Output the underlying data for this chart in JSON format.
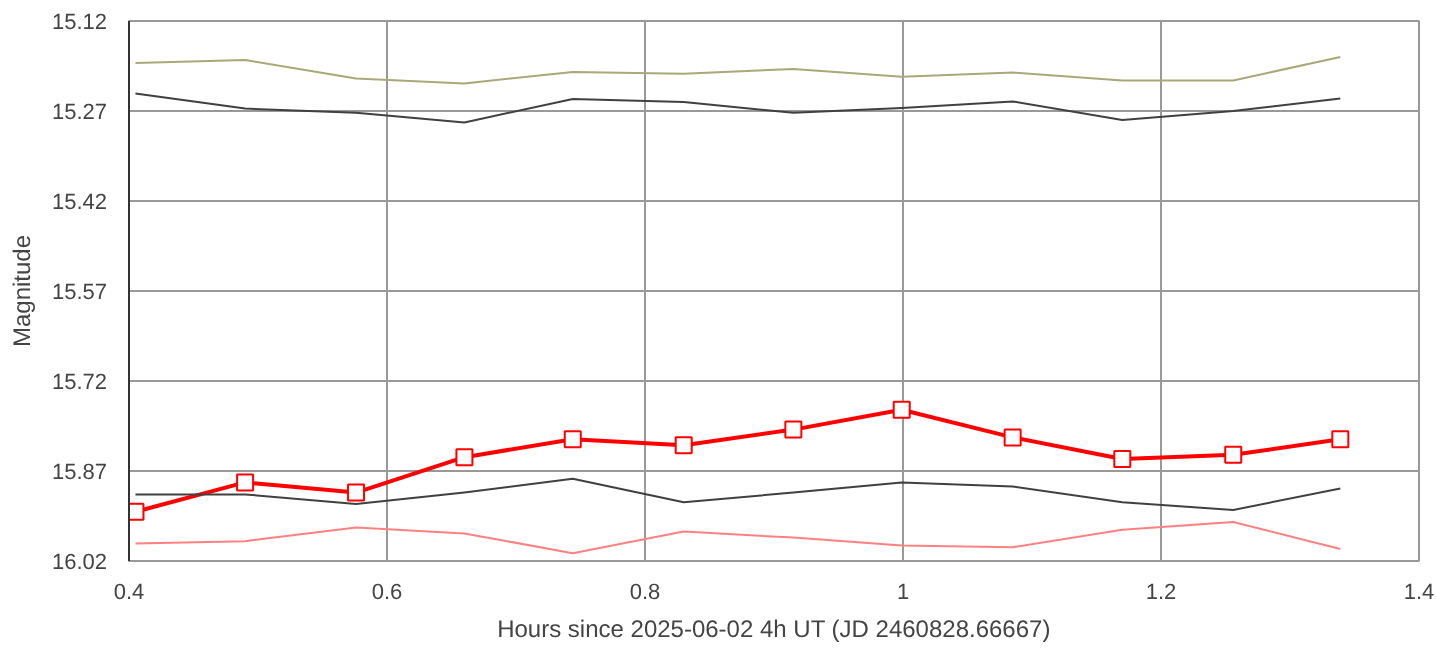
{
  "chart_data": {
    "type": "line",
    "xlabel": "Hours since 2025-06-02 4h UT (JD 2460828.66667)",
    "ylabel": "Magnitude",
    "x": [
      0.405,
      0.49,
      0.576,
      0.66,
      0.744,
      0.83,
      0.915,
      0.999,
      1.085,
      1.17,
      1.256,
      1.339
    ],
    "xlim": [
      0.4,
      1.4
    ],
    "xticks": [
      0.4,
      0.6,
      0.8,
      1,
      1.2,
      1.4
    ],
    "ylim": [
      16.02,
      15.12
    ],
    "yticks": [
      15.12,
      15.27,
      15.42,
      15.57,
      15.72,
      15.87,
      16.02
    ],
    "grid": true,
    "series": [
      {
        "color": "#a8a878",
        "values": [
          15.19,
          15.185,
          15.216,
          15.224,
          15.205,
          15.208,
          15.2,
          15.213,
          15.206,
          15.219,
          15.219,
          15.18
        ]
      },
      {
        "color": "#404040",
        "values": [
          15.241,
          15.266,
          15.273,
          15.289,
          15.25,
          15.255,
          15.273,
          15.265,
          15.254,
          15.285,
          15.27,
          15.249
        ]
      },
      {
        "color": "#ff0000",
        "marker": "square",
        "values": [
          15.938,
          15.889,
          15.906,
          15.847,
          15.817,
          15.827,
          15.801,
          15.768,
          15.814,
          15.85,
          15.843,
          15.817
        ]
      },
      {
        "color": "#404040",
        "values": [
          15.909,
          15.909,
          15.925,
          15.906,
          15.883,
          15.922,
          15.906,
          15.889,
          15.896,
          15.922,
          15.935,
          15.899
        ]
      },
      {
        "color": "#ff8080",
        "values": [
          15.991,
          15.987,
          15.964,
          15.974,
          16.007,
          15.971,
          15.981,
          15.994,
          15.997,
          15.968,
          15.955,
          16.0
        ]
      }
    ]
  }
}
